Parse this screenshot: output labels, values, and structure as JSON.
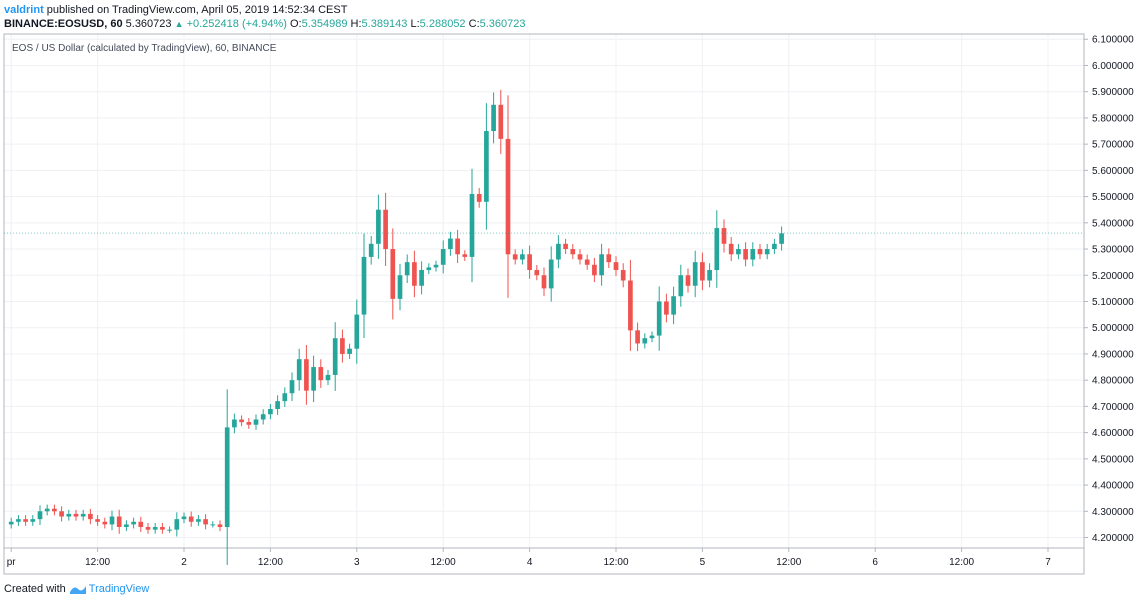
{
  "header": {
    "author": "valdrint",
    "published_text": "published on TradingView.com, April 05, 2019 14:52:34 CEST",
    "symbol": "BINANCE:EOSUSD, 60",
    "last": "5.360723",
    "change": "+0.252418 (+4.94%)",
    "o_label": "O:",
    "o_value": "5.354989",
    "h_label": "H:",
    "h_value": "5.389143",
    "l_label": "L:",
    "l_value": "5.288052",
    "c_label": "C:",
    "c_value": "5.360723"
  },
  "chart_title": "EOS / US Dollar (calculated by TradingView), 60, BINANCE",
  "footer": {
    "created_with": "Created with",
    "brand": "TradingView"
  },
  "colors": {
    "up": "#26a69a",
    "down": "#ef5350",
    "grid": "#eef0f3",
    "axis": "#b2b5be",
    "brand": "#2196f3"
  },
  "chart_data": {
    "type": "candlestick",
    "title": "EOS / US Dollar (calculated by TradingView), 60, BINANCE",
    "interval": "60",
    "x_start_hour": -1,
    "x_end_hour": 149,
    "y_range": [
      4.16,
      6.12
    ],
    "y_ticks": [
      "6.100000",
      "6.000000",
      "5.900000",
      "5.800000",
      "5.700000",
      "5.600000",
      "5.500000",
      "5.400000",
      "5.300000",
      "5.200000",
      "5.100000",
      "5.000000",
      "4.900000",
      "4.800000",
      "4.700000",
      "4.600000",
      "4.500000",
      "4.400000",
      "4.300000",
      "4.200000"
    ],
    "x_ticks": [
      {
        "label": "pr",
        "hour": 0
      },
      {
        "label": "12:00",
        "hour": 12
      },
      {
        "label": "2",
        "hour": 24
      },
      {
        "label": "12:00",
        "hour": 36
      },
      {
        "label": "3",
        "hour": 48
      },
      {
        "label": "12:00",
        "hour": 60
      },
      {
        "label": "4",
        "hour": 72
      },
      {
        "label": "12:00",
        "hour": 84
      },
      {
        "label": "5",
        "hour": 96
      },
      {
        "label": "12:00",
        "hour": 108
      },
      {
        "label": "6",
        "hour": 120
      },
      {
        "label": "12:00",
        "hour": 132
      },
      {
        "label": "7",
        "hour": 144
      }
    ],
    "closes": [
      4.26,
      4.27,
      4.26,
      4.27,
      4.3,
      4.31,
      4.3,
      4.28,
      4.29,
      4.28,
      4.29,
      4.27,
      4.26,
      4.25,
      4.28,
      4.24,
      4.25,
      4.26,
      4.24,
      4.23,
      4.24,
      4.23,
      4.23,
      4.27,
      4.28,
      4.26,
      4.27,
      4.25,
      4.25,
      4.24,
      4.62,
      4.65,
      4.64,
      4.63,
      4.65,
      4.67,
      4.69,
      4.72,
      4.75,
      4.8,
      4.88,
      4.76,
      4.85,
      4.8,
      4.82,
      4.96,
      4.9,
      4.92,
      5.05,
      5.27,
      5.32,
      5.45,
      5.3,
      5.11,
      5.2,
      5.25,
      5.16,
      5.22,
      5.23,
      5.24,
      5.3,
      5.34,
      5.28,
      5.27,
      5.51,
      5.48,
      5.75,
      5.85,
      5.72,
      5.28,
      5.26,
      5.28,
      5.22,
      5.2,
      5.15,
      5.26,
      5.32,
      5.3,
      5.28,
      5.26,
      5.24,
      5.2,
      5.28,
      5.25,
      5.22,
      5.18,
      4.99,
      4.94,
      4.96,
      4.97,
      5.1,
      5.05,
      5.12,
      5.2,
      5.16,
      5.25,
      5.18,
      5.22,
      5.38,
      5.32,
      5.28,
      5.3,
      5.26,
      5.3,
      5.28,
      5.3,
      5.32,
      5.36
    ],
    "last_close": 5.360723
  }
}
